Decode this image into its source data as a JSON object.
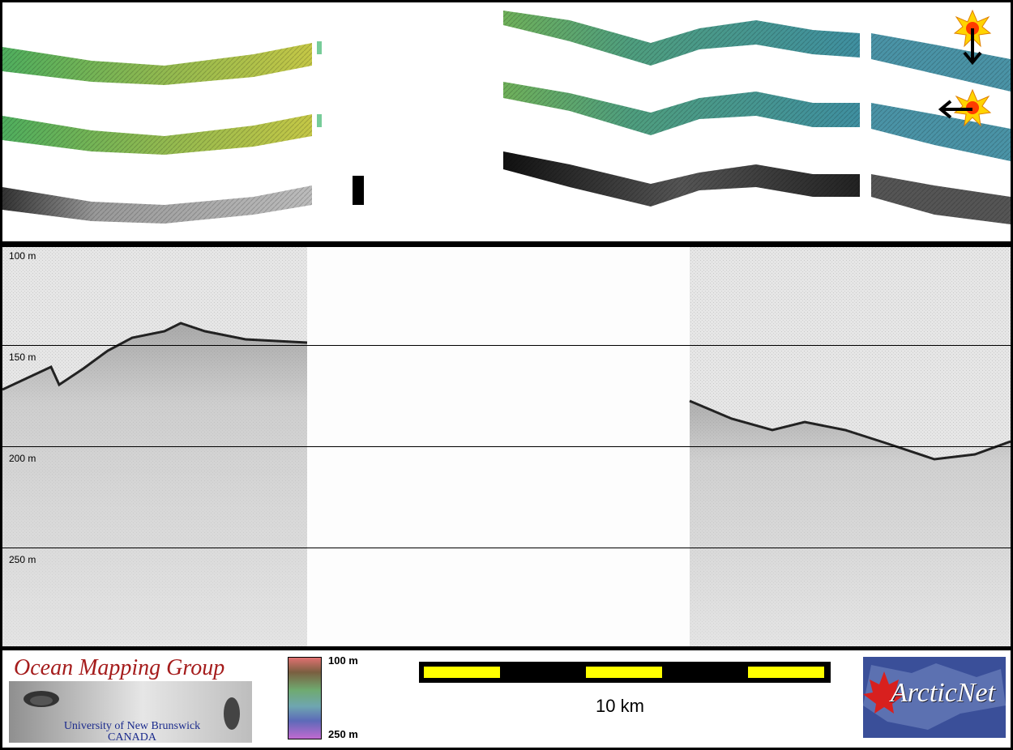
{
  "depth_labels": [
    "100 m",
    "150 m",
    "200 m",
    "250 m"
  ],
  "colorbar": {
    "top_label": "100 m",
    "bottom_label": "250 m"
  },
  "scale_bar": {
    "label": "10 km"
  },
  "logos": {
    "omg_title": "Ocean Mapping Group",
    "omg_university": "University of New Brunswick",
    "omg_country": "CANADA",
    "arcticnet": "ArcticNet"
  },
  "colors": {
    "swath_green": "#5fae5a",
    "swath_yellow": "#b9c64a",
    "swath_teal": "#4f9c9a",
    "scale_yellow": "#ffff00",
    "omg_red": "#a51c1c",
    "arctic_blue": "#3a4f99"
  },
  "icons": [
    "sun-illumination-icon",
    "arrow-down-icon",
    "arrow-left-icon",
    "maple-leaf-icon"
  ]
}
